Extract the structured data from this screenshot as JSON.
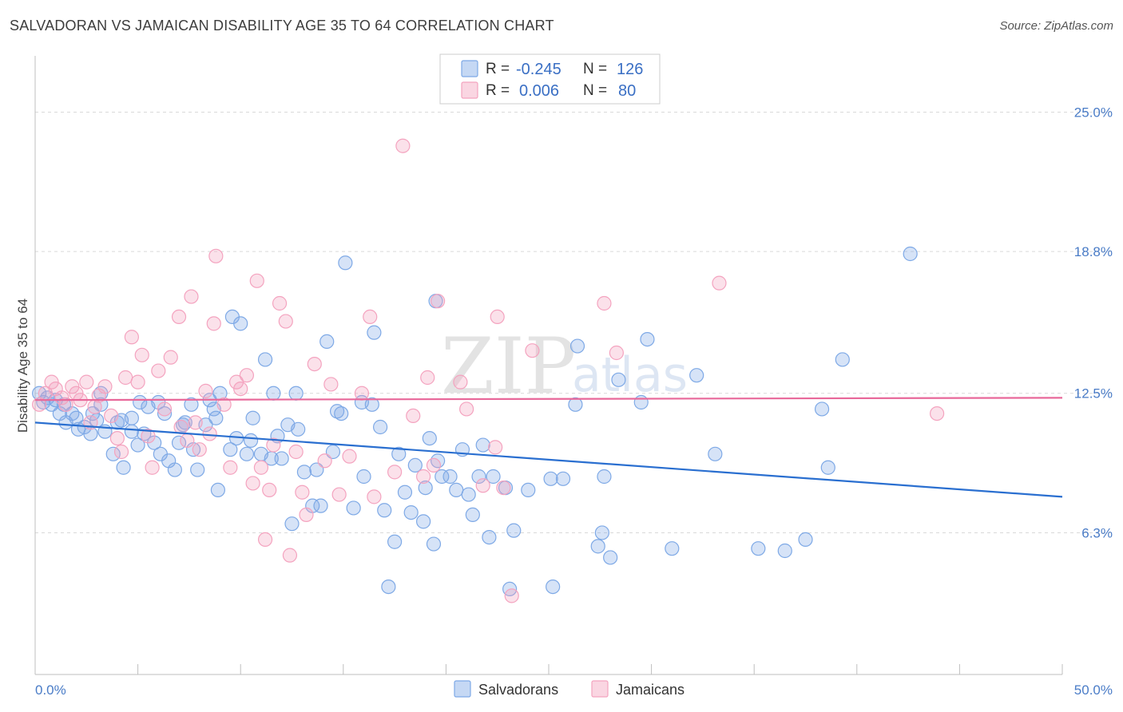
{
  "title": "SALVADORAN VS JAMAICAN DISABILITY AGE 35 TO 64 CORRELATION CHART",
  "source": "Source: ZipAtlas.com",
  "watermark": {
    "part1": "ZIP",
    "part2": "atlas"
  },
  "chart_data": {
    "type": "scatter",
    "xlabel": "",
    "ylabel": "Disability Age 35 to 64",
    "xlim": [
      0,
      50
    ],
    "ylim": [
      0,
      27.5
    ],
    "x_tick_labels": [
      "0.0%",
      "50.0%"
    ],
    "y_ticks": [
      6.3,
      12.5,
      18.8,
      25.0
    ],
    "y_tick_labels": [
      "6.3%",
      "12.5%",
      "18.8%",
      "25.0%"
    ],
    "colors": {
      "salvadorans": "#7ea9e6",
      "jamaicans": "#f4a3bf",
      "salvadorans_line": "#2a6fd0",
      "jamaicans_line": "#e8689a"
    },
    "legend": {
      "rows": [
        {
          "r_label": "R =",
          "r_value": "-0.245",
          "n_label": "N =",
          "n_value": "126"
        },
        {
          "r_label": "R =",
          "r_value": "0.006",
          "n_label": "N =",
          "n_value": "80"
        }
      ]
    },
    "series": [
      {
        "name": "Salvadorans",
        "trend": {
          "x": [
            0,
            50
          ],
          "y": [
            11.2,
            7.9
          ]
        },
        "points": [
          [
            0.2,
            12.5
          ],
          [
            0.4,
            12.1
          ],
          [
            0.6,
            12.3
          ],
          [
            0.8,
            12.0
          ],
          [
            1.0,
            12.2
          ],
          [
            1.2,
            11.6
          ],
          [
            1.4,
            12.0
          ],
          [
            1.5,
            11.2
          ],
          [
            1.8,
            11.6
          ],
          [
            2.0,
            11.4
          ],
          [
            2.1,
            10.9
          ],
          [
            2.4,
            11.0
          ],
          [
            2.8,
            11.6
          ],
          [
            2.7,
            10.7
          ],
          [
            3.0,
            11.3
          ],
          [
            3.2,
            12.0
          ],
          [
            3.2,
            12.5
          ],
          [
            3.4,
            10.8
          ],
          [
            4.0,
            11.2
          ],
          [
            4.2,
            11.3
          ],
          [
            3.8,
            9.8
          ],
          [
            4.3,
            9.2
          ],
          [
            4.7,
            10.8
          ],
          [
            4.7,
            11.4
          ],
          [
            5.0,
            10.2
          ],
          [
            5.1,
            12.1
          ],
          [
            5.3,
            10.7
          ],
          [
            5.5,
            11.9
          ],
          [
            5.8,
            10.3
          ],
          [
            6.0,
            12.1
          ],
          [
            6.1,
            9.8
          ],
          [
            6.3,
            11.6
          ],
          [
            6.5,
            9.5
          ],
          [
            6.8,
            9.1
          ],
          [
            7.0,
            10.3
          ],
          [
            7.2,
            11.1
          ],
          [
            7.3,
            11.2
          ],
          [
            7.6,
            12.0
          ],
          [
            7.7,
            10.0
          ],
          [
            7.9,
            9.1
          ],
          [
            8.3,
            11.1
          ],
          [
            8.5,
            12.2
          ],
          [
            8.7,
            11.8
          ],
          [
            8.8,
            11.4
          ],
          [
            8.9,
            8.2
          ],
          [
            9.0,
            12.5
          ],
          [
            9.5,
            10.0
          ],
          [
            9.6,
            15.9
          ],
          [
            9.8,
            10.5
          ],
          [
            10.0,
            15.6
          ],
          [
            10.3,
            9.8
          ],
          [
            10.5,
            10.4
          ],
          [
            10.6,
            11.4
          ],
          [
            11.0,
            9.8
          ],
          [
            11.2,
            14.0
          ],
          [
            11.5,
            9.6
          ],
          [
            11.6,
            12.5
          ],
          [
            11.8,
            10.6
          ],
          [
            12.0,
            9.6
          ],
          [
            12.3,
            11.1
          ],
          [
            12.5,
            6.7
          ],
          [
            12.7,
            12.5
          ],
          [
            12.8,
            10.9
          ],
          [
            13.1,
            9.0
          ],
          [
            13.5,
            7.5
          ],
          [
            13.7,
            9.1
          ],
          [
            13.9,
            7.5
          ],
          [
            14.2,
            14.8
          ],
          [
            14.5,
            9.9
          ],
          [
            14.7,
            11.7
          ],
          [
            14.9,
            11.6
          ],
          [
            15.1,
            18.3
          ],
          [
            15.5,
            7.4
          ],
          [
            15.9,
            12.1
          ],
          [
            16.0,
            8.8
          ],
          [
            16.4,
            12.0
          ],
          [
            16.5,
            15.2
          ],
          [
            16.8,
            11.0
          ],
          [
            17.0,
            7.3
          ],
          [
            17.2,
            3.9
          ],
          [
            17.5,
            5.9
          ],
          [
            17.7,
            9.8
          ],
          [
            18.0,
            8.1
          ],
          [
            18.3,
            7.2
          ],
          [
            18.5,
            9.3
          ],
          [
            18.9,
            6.8
          ],
          [
            19.0,
            8.3
          ],
          [
            19.2,
            10.5
          ],
          [
            19.4,
            5.8
          ],
          [
            19.5,
            16.6
          ],
          [
            19.6,
            9.5
          ],
          [
            19.8,
            8.8
          ],
          [
            20.2,
            8.8
          ],
          [
            20.5,
            8.2
          ],
          [
            20.8,
            10.0
          ],
          [
            21.1,
            8.0
          ],
          [
            21.3,
            7.1
          ],
          [
            21.6,
            8.8
          ],
          [
            21.8,
            10.2
          ],
          [
            22.1,
            6.1
          ],
          [
            22.3,
            8.8
          ],
          [
            22.9,
            8.3
          ],
          [
            23.1,
            3.8
          ],
          [
            23.3,
            6.4
          ],
          [
            24.0,
            8.2
          ],
          [
            25.1,
            8.7
          ],
          [
            25.2,
            3.9
          ],
          [
            25.7,
            8.7
          ],
          [
            26.3,
            12.0
          ],
          [
            26.4,
            14.6
          ],
          [
            27.4,
            5.7
          ],
          [
            27.6,
            6.3
          ],
          [
            27.7,
            8.8
          ],
          [
            28.0,
            5.2
          ],
          [
            28.4,
            13.1
          ],
          [
            29.5,
            12.1
          ],
          [
            29.8,
            14.9
          ],
          [
            31.0,
            5.6
          ],
          [
            32.2,
            13.3
          ],
          [
            33.1,
            9.8
          ],
          [
            35.2,
            5.6
          ],
          [
            36.5,
            5.5
          ],
          [
            37.5,
            6.0
          ],
          [
            38.3,
            11.8
          ],
          [
            38.6,
            9.2
          ],
          [
            39.3,
            14.0
          ],
          [
            42.6,
            18.7
          ]
        ]
      },
      {
        "name": "Jamaicans",
        "trend": {
          "x": [
            0,
            50
          ],
          "y": [
            12.2,
            12.3
          ]
        },
        "points": [
          [
            0.2,
            12.0
          ],
          [
            0.5,
            12.5
          ],
          [
            0.8,
            13.0
          ],
          [
            1.0,
            12.7
          ],
          [
            1.3,
            12.3
          ],
          [
            1.5,
            12.0
          ],
          [
            1.8,
            12.8
          ],
          [
            2.0,
            12.5
          ],
          [
            2.2,
            12.2
          ],
          [
            2.5,
            13.0
          ],
          [
            2.7,
            11.2
          ],
          [
            2.9,
            11.9
          ],
          [
            3.1,
            12.4
          ],
          [
            3.4,
            12.8
          ],
          [
            3.7,
            11.5
          ],
          [
            4.0,
            10.5
          ],
          [
            4.2,
            9.9
          ],
          [
            4.4,
            13.2
          ],
          [
            4.7,
            15.0
          ],
          [
            5.0,
            13.0
          ],
          [
            5.2,
            14.2
          ],
          [
            5.5,
            10.6
          ],
          [
            5.7,
            9.2
          ],
          [
            6.0,
            13.5
          ],
          [
            6.3,
            11.8
          ],
          [
            6.6,
            14.1
          ],
          [
            7.0,
            15.9
          ],
          [
            7.1,
            11.0
          ],
          [
            7.4,
            10.4
          ],
          [
            7.6,
            16.8
          ],
          [
            7.8,
            11.2
          ],
          [
            8.0,
            10.0
          ],
          [
            8.3,
            12.6
          ],
          [
            8.5,
            10.7
          ],
          [
            8.7,
            15.6
          ],
          [
            8.8,
            18.6
          ],
          [
            9.2,
            12.0
          ],
          [
            9.5,
            9.2
          ],
          [
            9.8,
            13.0
          ],
          [
            10.0,
            12.7
          ],
          [
            10.3,
            13.3
          ],
          [
            10.6,
            8.5
          ],
          [
            10.8,
            17.5
          ],
          [
            11.0,
            9.2
          ],
          [
            11.2,
            6.0
          ],
          [
            11.4,
            8.2
          ],
          [
            11.6,
            10.2
          ],
          [
            11.9,
            16.5
          ],
          [
            12.2,
            15.7
          ],
          [
            12.4,
            5.3
          ],
          [
            12.7,
            9.9
          ],
          [
            13.0,
            8.1
          ],
          [
            13.2,
            7.1
          ],
          [
            13.6,
            13.8
          ],
          [
            14.1,
            9.5
          ],
          [
            14.4,
            12.9
          ],
          [
            14.8,
            8.0
          ],
          [
            15.3,
            9.7
          ],
          [
            15.9,
            12.5
          ],
          [
            16.3,
            15.9
          ],
          [
            16.5,
            7.9
          ],
          [
            17.5,
            9.0
          ],
          [
            17.9,
            23.5
          ],
          [
            18.4,
            11.5
          ],
          [
            18.9,
            8.8
          ],
          [
            19.1,
            13.2
          ],
          [
            19.4,
            9.3
          ],
          [
            19.6,
            16.6
          ],
          [
            20.7,
            13.0
          ],
          [
            21.0,
            11.8
          ],
          [
            21.8,
            8.4
          ],
          [
            22.4,
            10.1
          ],
          [
            22.5,
            15.9
          ],
          [
            22.8,
            8.3
          ],
          [
            23.2,
            3.5
          ],
          [
            24.2,
            14.4
          ],
          [
            27.7,
            16.5
          ],
          [
            28.3,
            14.3
          ],
          [
            33.3,
            17.4
          ],
          [
            43.9,
            11.6
          ]
        ]
      }
    ]
  }
}
